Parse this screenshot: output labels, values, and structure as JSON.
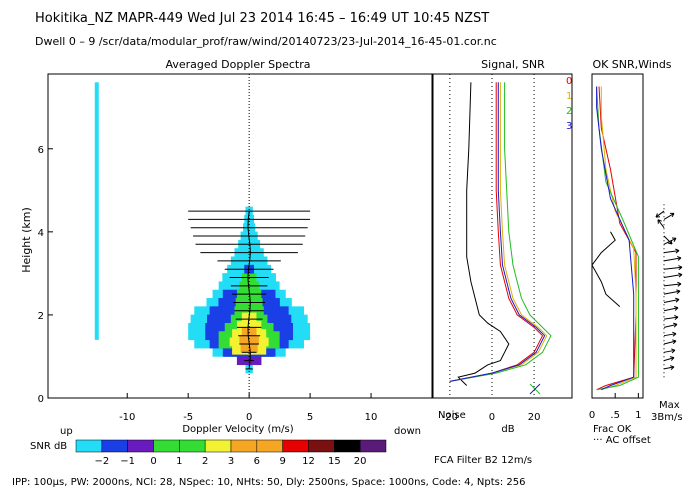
{
  "header": {
    "line1": "Hokitika_NZ   MAPR-449   Wed Jul 23 2014  16:45 – 16:49 UT 10:45 NZST",
    "line2": "Dwell  0  –  9    /scr/data/modular_prof/raw/wind/20140723/23-Jul-2014_16-45-01.cor.nc"
  },
  "panels": {
    "spectra_title": "Averaged Doppler Spectra",
    "signal_title": "Signal, SNR",
    "ok_title": "OK SNR,Winds",
    "y_axis_label": "Height (km)",
    "x_axis_label": "Doppler Velocity (m/s)",
    "up_label": "up",
    "down_label": "down",
    "snr_label": "SNR dB",
    "db_label": "dB",
    "noise_label": "Noise",
    "frac_ok_label": "Frac OK",
    "ac_offset_label": "··· AC offset",
    "max_label": "Max",
    "max_value": "3Bm/s",
    "fca_label": "FCA Filter B2 12m/s",
    "footer": "IPP: 100μs,  PW: 2000ns,  NCI:  28,  NSpec: 10, NHts: 50,  Dly: 2500ns,  Space: 1000ns,  Code: 4,  Npts: 256"
  },
  "colors": {
    "cyan": "#22ddf5",
    "blue": "#1a3fe6",
    "purple": "#6a1bbf",
    "green": "#33dd33",
    "yellow": "#f2f233",
    "orange": "#f5a623",
    "red": "#e60000",
    "dkred": "#7a1010",
    "black": "#000000",
    "violet": "#5a1a7a",
    "rx0": "#e60000",
    "rx1": "#e0b000",
    "rx2": "#22bb22",
    "rx3": "#1a1acc"
  },
  "chart_data": [
    {
      "type": "heatmap",
      "title": "Averaged Doppler Spectra",
      "xlabel": "Doppler Velocity (m/s)",
      "ylabel": "Height (km)",
      "xlim": [
        -16.5,
        15
      ],
      "ylim": [
        0,
        7.8
      ],
      "xticks": [
        -10,
        -5,
        0,
        5,
        10
      ],
      "yticks": [
        0,
        2,
        4,
        6
      ],
      "rows": [
        {
          "h": 0.7,
          "w": 0.3,
          "c": "cyan"
        },
        {
          "h": 0.9,
          "w": 1.0,
          "c": "blue"
        },
        {
          "h": 1.1,
          "w": 3.0,
          "c": "cyan"
        },
        {
          "h": 1.3,
          "w": 4.5,
          "c": "cyan"
        },
        {
          "h": 1.5,
          "w": 5.0,
          "c": "cyan"
        },
        {
          "h": 1.7,
          "w": 5.0,
          "c": "cyan"
        },
        {
          "h": 1.9,
          "w": 4.8,
          "c": "cyan"
        },
        {
          "h": 2.1,
          "w": 4.5,
          "c": "cyan"
        },
        {
          "h": 2.3,
          "w": 3.5,
          "c": "cyan"
        },
        {
          "h": 2.5,
          "w": 3.0,
          "c": "cyan"
        },
        {
          "h": 2.7,
          "w": 2.5,
          "c": "cyan"
        },
        {
          "h": 2.9,
          "w": 2.2,
          "c": "cyan"
        },
        {
          "h": 3.1,
          "w": 1.8,
          "c": "cyan"
        },
        {
          "h": 3.3,
          "w": 1.5,
          "c": "cyan"
        },
        {
          "h": 3.5,
          "w": 1.2,
          "c": "cyan"
        },
        {
          "h": 3.7,
          "w": 0.9,
          "c": "cyan"
        },
        {
          "h": 3.9,
          "w": 0.7,
          "c": "cyan"
        },
        {
          "h": 4.1,
          "w": 0.5,
          "c": "cyan"
        },
        {
          "h": 4.3,
          "w": 0.4,
          "c": "cyan"
        },
        {
          "h": 4.5,
          "w": 0.3,
          "c": "cyan"
        }
      ],
      "core": [
        {
          "h": 0.9,
          "w": 1.0,
          "c": "purple"
        },
        {
          "h": 1.1,
          "w": 2.0,
          "c": "blue"
        },
        {
          "h": 1.3,
          "w": 2.5,
          "c": "green"
        },
        {
          "h": 1.5,
          "w": 2.5,
          "c": "green"
        },
        {
          "h": 1.7,
          "w": 2.0,
          "c": "green"
        },
        {
          "h": 1.9,
          "w": 1.5,
          "c": "green"
        },
        {
          "h": 2.1,
          "w": 1.2,
          "c": "green"
        },
        {
          "h": 2.3,
          "w": 1.1,
          "c": "green"
        },
        {
          "h": 2.5,
          "w": 1.0,
          "c": "green"
        },
        {
          "h": 2.7,
          "w": 0.8,
          "c": "green"
        },
        {
          "h": 2.9,
          "w": 0.6,
          "c": "green"
        },
        {
          "h": 3.1,
          "w": 0.4,
          "c": "blue"
        },
        {
          "h": 1.15,
          "w": 1.4,
          "c": "yellow"
        },
        {
          "h": 1.35,
          "w": 1.6,
          "c": "yellow"
        },
        {
          "h": 1.55,
          "w": 1.4,
          "c": "yellow"
        },
        {
          "h": 1.75,
          "w": 1.0,
          "c": "yellow"
        },
        {
          "h": 1.95,
          "w": 0.6,
          "c": "yellow"
        },
        {
          "h": 1.2,
          "w": 0.7,
          "c": "orange"
        },
        {
          "h": 1.4,
          "w": 0.8,
          "c": "orange"
        },
        {
          "h": 1.6,
          "w": 0.6,
          "c": "orange"
        }
      ],
      "error_bars": [
        {
          "h": 0.7,
          "half": 0.3
        },
        {
          "h": 0.9,
          "half": 0.4
        },
        {
          "h": 1.1,
          "half": 0.6
        },
        {
          "h": 1.3,
          "half": 0.8
        },
        {
          "h": 1.5,
          "half": 0.9
        },
        {
          "h": 1.7,
          "half": 1.0
        },
        {
          "h": 1.9,
          "half": 1.1
        },
        {
          "h": 2.1,
          "half": 1.2
        },
        {
          "h": 2.3,
          "half": 1.3
        },
        {
          "h": 2.5,
          "half": 1.4
        },
        {
          "h": 2.7,
          "half": 1.5
        },
        {
          "h": 2.9,
          "half": 1.6
        },
        {
          "h": 3.1,
          "half": 2.0
        },
        {
          "h": 3.3,
          "half": 2.6
        },
        {
          "h": 3.5,
          "half": 4.0
        },
        {
          "h": 3.7,
          "half": 4.4
        },
        {
          "h": 3.9,
          "half": 4.6
        },
        {
          "h": 4.1,
          "half": 4.8
        },
        {
          "h": 4.3,
          "half": 5.0
        },
        {
          "h": 4.5,
          "half": 5.0
        }
      ],
      "noise_strip": {
        "v": -12.5,
        "from": 1.4,
        "to": 7.6
      }
    },
    {
      "type": "line",
      "title": "Signal, SNR",
      "xlabel": "dB",
      "xlim": [
        -28,
        38
      ],
      "xticks": [
        -20,
        0,
        20
      ],
      "ylim": [
        0,
        7.8
      ],
      "series": [
        {
          "name": "noise",
          "color": "black",
          "points": [
            [
              -12,
              0.3
            ],
            [
              -16,
              0.5
            ],
            [
              -8,
              0.6
            ],
            [
              -2,
              0.8
            ],
            [
              4,
              0.9
            ],
            [
              6,
              1.1
            ],
            [
              8,
              1.3
            ],
            [
              4,
              1.6
            ],
            [
              -2,
              1.8
            ],
            [
              -6,
              2.0
            ],
            [
              -8,
              2.4
            ],
            [
              -10,
              2.8
            ],
            [
              -12,
              3.4
            ],
            [
              -12,
              4.2
            ],
            [
              -12,
              5.0
            ],
            [
              -11,
              6.0
            ],
            [
              -10,
              7.6
            ]
          ]
        },
        {
          "name": "signal-0",
          "color": "rx0",
          "points": [
            [
              -20,
              0.4
            ],
            [
              0,
              0.6
            ],
            [
              12,
              0.8
            ],
            [
              20,
              1.1
            ],
            [
              24,
              1.5
            ],
            [
              20,
              1.7
            ],
            [
              12,
              2.0
            ],
            [
              8,
              2.4
            ],
            [
              6,
              2.8
            ],
            [
              4,
              3.2
            ],
            [
              3,
              4.0
            ],
            [
              2,
              5.0
            ],
            [
              2,
              6.0
            ],
            [
              2,
              7.6
            ]
          ]
        },
        {
          "name": "signal-1",
          "color": "rx1",
          "points": [
            [
              -20,
              0.4
            ],
            [
              0,
              0.6
            ],
            [
              14,
              0.8
            ],
            [
              22,
              1.1
            ],
            [
              26,
              1.5
            ],
            [
              22,
              1.7
            ],
            [
              14,
              2.0
            ],
            [
              10,
              2.4
            ],
            [
              8,
              2.8
            ],
            [
              6,
              3.2
            ],
            [
              5,
              4.0
            ],
            [
              4,
              5.0
            ],
            [
              4,
              6.0
            ],
            [
              4,
              7.6
            ]
          ]
        },
        {
          "name": "signal-2",
          "color": "rx2",
          "points": [
            [
              -20,
              0.4
            ],
            [
              2,
              0.6
            ],
            [
              16,
              0.8
            ],
            [
              24,
              1.1
            ],
            [
              28,
              1.5
            ],
            [
              24,
              1.7
            ],
            [
              18,
              2.0
            ],
            [
              14,
              2.4
            ],
            [
              12,
              2.8
            ],
            [
              10,
              3.2
            ],
            [
              8,
              4.0
            ],
            [
              7,
              5.0
            ],
            [
              6,
              6.0
            ],
            [
              6,
              7.6
            ]
          ]
        },
        {
          "name": "signal-3",
          "color": "rx3",
          "points": [
            [
              -20,
              0.4
            ],
            [
              0,
              0.6
            ],
            [
              13,
              0.8
            ],
            [
              21,
              1.1
            ],
            [
              25,
              1.5
            ],
            [
              21,
              1.7
            ],
            [
              13,
              2.0
            ],
            [
              9,
              2.4
            ],
            [
              7,
              2.8
            ],
            [
              5,
              3.2
            ],
            [
              4,
              4.0
            ],
            [
              3,
              5.0
            ],
            [
              3,
              6.0
            ],
            [
              3,
              7.6
            ]
          ]
        }
      ],
      "receiver_labels": [
        "0",
        "1",
        "2",
        "3"
      ]
    },
    {
      "type": "line",
      "title": "OK SNR,Winds",
      "xlabel": "Frac OK",
      "xlim": [
        0,
        1.1
      ],
      "xticks": [
        0,
        0.5,
        1
      ],
      "tick_labels": [
        "0",
        ".5",
        "1"
      ],
      "series": [
        {
          "name": "ok-0",
          "color": "rx0",
          "points": [
            [
              0.1,
              0.2
            ],
            [
              0.3,
              0.3
            ],
            [
              0.9,
              0.5
            ],
            [
              0.95,
              2
            ],
            [
              0.95,
              3.5
            ],
            [
              0.6,
              4.2
            ],
            [
              0.4,
              5.5
            ],
            [
              0.2,
              6.5
            ],
            [
              0.15,
              7.5
            ]
          ]
        },
        {
          "name": "ok-1",
          "color": "rx1",
          "points": [
            [
              0.2,
              0.2
            ],
            [
              0.5,
              0.3
            ],
            [
              0.95,
              0.5
            ],
            [
              0.95,
              2.5
            ],
            [
              0.9,
              3.6
            ],
            [
              0.5,
              4.5
            ],
            [
              0.3,
              5.5
            ],
            [
              0.2,
              6.8
            ],
            [
              0.2,
              7.5
            ]
          ]
        },
        {
          "name": "ok-2",
          "color": "rx2",
          "points": [
            [
              0.1,
              0.2
            ],
            [
              0.6,
              0.3
            ],
            [
              1.0,
              0.5
            ],
            [
              1.0,
              2.5
            ],
            [
              1.0,
              3.4
            ],
            [
              0.7,
              4.2
            ],
            [
              0.3,
              5.2
            ],
            [
              0.15,
              6.5
            ],
            [
              0.1,
              7.5
            ]
          ]
        },
        {
          "name": "ok-3",
          "color": "rx3",
          "points": [
            [
              0.2,
              0.2
            ],
            [
              0.4,
              0.3
            ],
            [
              0.9,
              0.5
            ],
            [
              0.9,
              2.5
            ],
            [
              0.8,
              3.8
            ],
            [
              0.4,
              4.8
            ],
            [
              0.2,
              6.0
            ],
            [
              0.1,
              7.0
            ],
            [
              0.1,
              7.5
            ]
          ]
        },
        {
          "name": "ok-black",
          "color": "black",
          "points": [
            [
              0.6,
              2.2
            ],
            [
              0.3,
              2.5
            ],
            [
              0.2,
              2.8
            ],
            [
              0.0,
              3.2
            ],
            [
              0.2,
              3.5
            ],
            [
              0.5,
              3.8
            ],
            [
              0.4,
              4.0
            ]
          ]
        }
      ],
      "wind_vectors": [
        {
          "h": 0.7,
          "dx": 10,
          "dy": 2
        },
        {
          "h": 0.9,
          "dx": 10,
          "dy": 3
        },
        {
          "h": 1.1,
          "dx": 11,
          "dy": 2
        },
        {
          "h": 1.3,
          "dx": 12,
          "dy": 3
        },
        {
          "h": 1.5,
          "dx": 12,
          "dy": 2
        },
        {
          "h": 1.7,
          "dx": 13,
          "dy": 3
        },
        {
          "h": 1.9,
          "dx": 14,
          "dy": 2
        },
        {
          "h": 2.1,
          "dx": 14,
          "dy": 3
        },
        {
          "h": 2.3,
          "dx": 15,
          "dy": 3
        },
        {
          "h": 2.5,
          "dx": 16,
          "dy": 3
        },
        {
          "h": 2.7,
          "dx": 17,
          "dy": 2
        },
        {
          "h": 2.9,
          "dx": 18,
          "dy": 3
        },
        {
          "h": 3.1,
          "dx": 18,
          "dy": 2
        },
        {
          "h": 3.3,
          "dx": 17,
          "dy": 3
        },
        {
          "h": 3.5,
          "dx": 15,
          "dy": 2
        },
        {
          "h": 3.7,
          "dx": 12,
          "dy": 6
        },
        {
          "h": 3.9,
          "dx": 8,
          "dy": -8
        },
        {
          "h": 4.1,
          "dx": -6,
          "dy": 8
        },
        {
          "h": 4.3,
          "dx": 10,
          "dy": 6
        },
        {
          "h": 4.5,
          "dx": -8,
          "dy": -6
        }
      ]
    },
    {
      "type": "colorbar",
      "label": "SNR dB",
      "ticks": [
        "−2",
        "−1",
        "0",
        "1",
        "2",
        "3",
        "6",
        "9",
        "12",
        "15",
        "20"
      ],
      "bins": [
        "cyan",
        "blue",
        "purple",
        "green",
        "green",
        "yellow",
        "orange",
        "orange",
        "red",
        "dkred",
        "black",
        "violet"
      ]
    }
  ]
}
